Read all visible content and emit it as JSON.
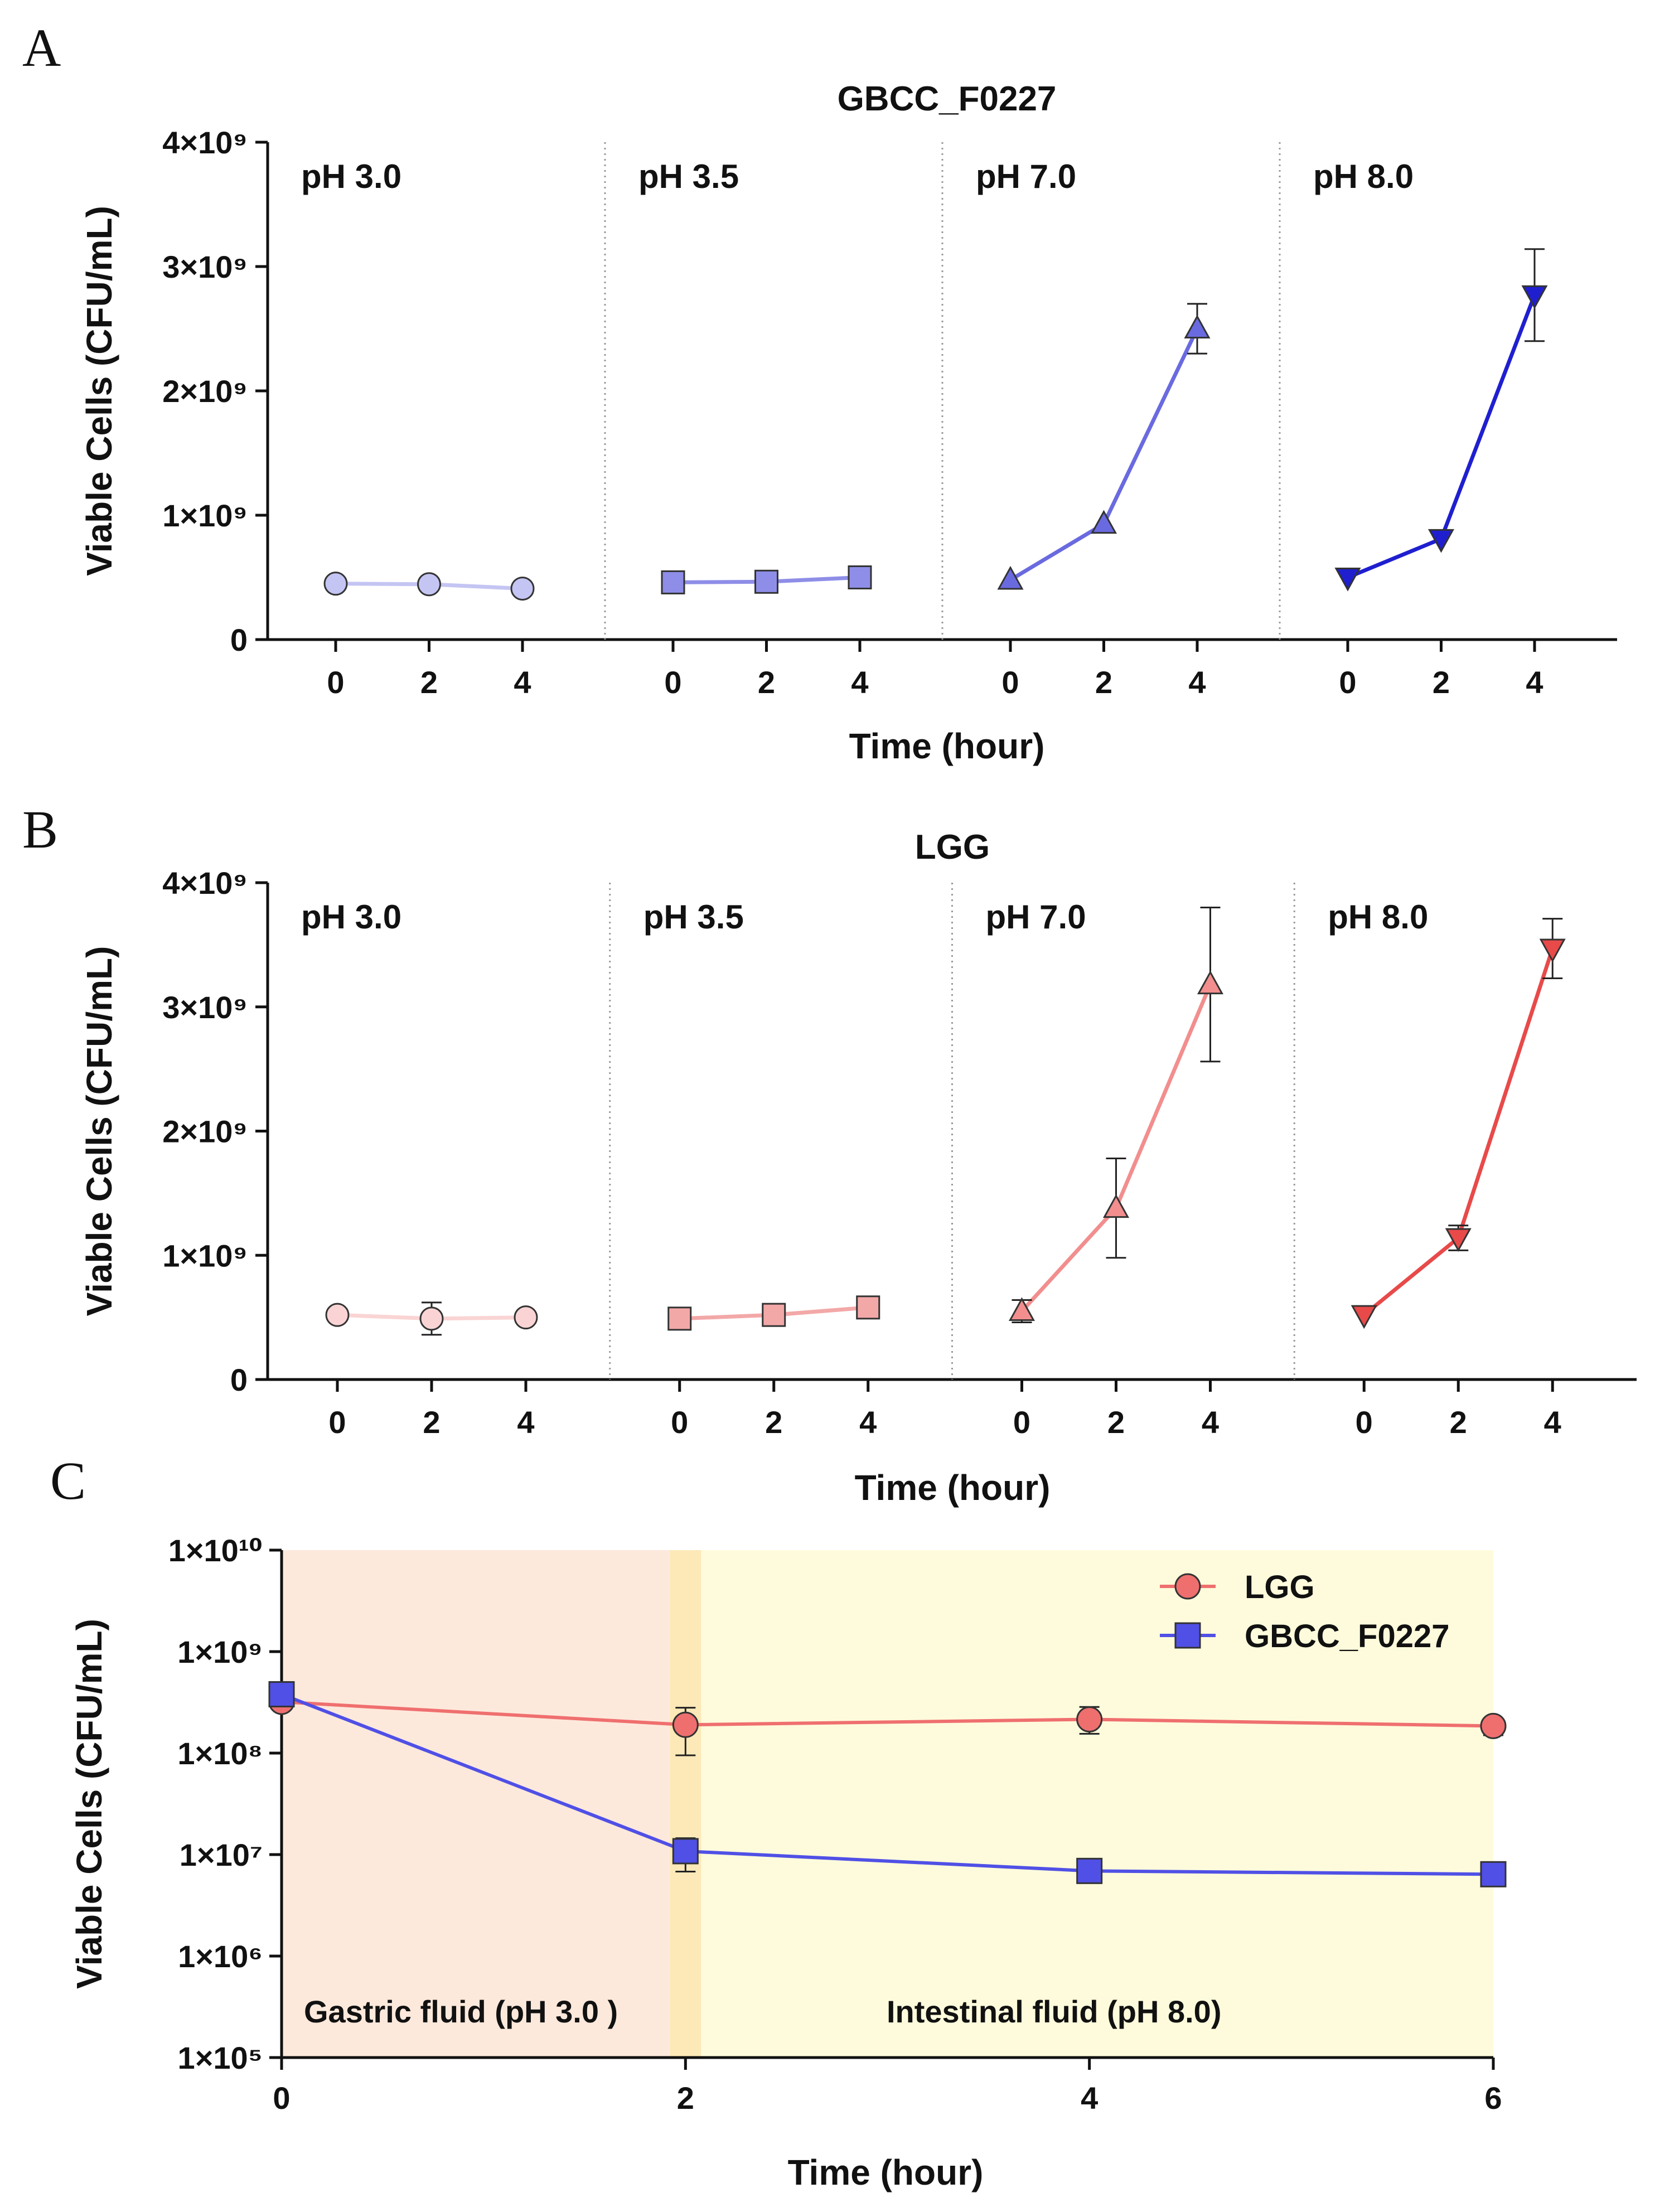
{
  "panels": {
    "A": {
      "letter": "A",
      "chart_data": {
        "type": "line",
        "title": "GBCC_F0227",
        "xlabel": "Time (hour)",
        "ylabel": "Viable Cells (CFU/mL)",
        "ylim": [
          0,
          4000000000
        ],
        "yticks": [
          {
            "value": 0,
            "label": "0"
          },
          {
            "value": 1000000000,
            "label": "1×10⁹"
          },
          {
            "value": 2000000000,
            "label": "2×10⁹"
          },
          {
            "value": 3000000000,
            "label": "3×10⁹"
          },
          {
            "value": 4000000000,
            "label": "4×10⁹"
          }
        ],
        "x": [
          0,
          2,
          4
        ],
        "xtick_labels": [
          "0",
          "2",
          "4"
        ],
        "facets": [
          {
            "name": "pH 3.0",
            "marker": "circle",
            "color": "#c5c5f3",
            "values": [
              450000000,
              445000000,
              410000000
            ],
            "errors": [
              10000000,
              10000000,
              10000000
            ]
          },
          {
            "name": "pH 3.5",
            "marker": "square",
            "color": "#8e8ee8",
            "values": [
              460000000,
              465000000,
              500000000
            ],
            "errors": [
              10000000,
              10000000,
              20000000
            ]
          },
          {
            "name": "pH 7.0",
            "marker": "triangle-up",
            "color": "#6a6ae0",
            "values": [
              480000000,
              930000000,
              2500000000
            ],
            "errors": [
              30000000,
              50000000,
              200000000
            ]
          },
          {
            "name": "pH 8.0",
            "marker": "triangle-down",
            "color": "#1f1fd0",
            "values": [
              500000000,
              810000000,
              2770000000
            ],
            "errors": [
              30000000,
              60000000,
              370000000
            ]
          }
        ]
      }
    },
    "B": {
      "letter": "B",
      "chart_data": {
        "type": "line",
        "title": "LGG",
        "xlabel": "Time (hour)",
        "ylabel": "Viable Cells (CFU/mL)",
        "ylim": [
          0,
          4000000000
        ],
        "yticks": [
          {
            "value": 0,
            "label": "0"
          },
          {
            "value": 1000000000,
            "label": "1×10⁹"
          },
          {
            "value": 2000000000,
            "label": "2×10⁹"
          },
          {
            "value": 3000000000,
            "label": "3×10⁹"
          },
          {
            "value": 4000000000,
            "label": "4×10⁹"
          }
        ],
        "x": [
          0,
          2,
          4
        ],
        "xtick_labels": [
          "0",
          "2",
          "4"
        ],
        "facets": [
          {
            "name": "pH 3.0",
            "marker": "circle",
            "color": "#fad4d4",
            "values": [
              520000000,
              490000000,
              500000000
            ],
            "errors": [
              20000000,
              130000000,
              20000000
            ]
          },
          {
            "name": "pH 3.5",
            "marker": "square",
            "color": "#f3a8a8",
            "values": [
              490000000,
              520000000,
              580000000
            ],
            "errors": [
              20000000,
              20000000,
              30000000
            ]
          },
          {
            "name": "pH 7.0",
            "marker": "triangle-up",
            "color": "#f28e8e",
            "values": [
              550000000,
              1380000000,
              3180000000
            ],
            "errors": [
              90000000,
              400000000,
              620000000
            ]
          },
          {
            "name": "pH 8.0",
            "marker": "triangle-down",
            "color": "#e84a4a",
            "values": [
              520000000,
              1140000000,
              3470000000
            ],
            "errors": [
              50000000,
              100000000,
              240000000
            ]
          }
        ]
      }
    },
    "C": {
      "letter": "C",
      "chart_data": {
        "type": "line",
        "title": "",
        "xlabel": "Time (hour)",
        "ylabel": "Viable Cells (CFU/mL)",
        "yscale": "log",
        "ylim_exp": [
          5,
          10
        ],
        "yticks": [
          {
            "exp": 5,
            "label": "1×10⁵"
          },
          {
            "exp": 6,
            "label": "1×10⁶"
          },
          {
            "exp": 7,
            "label": "1×10⁷"
          },
          {
            "exp": 8,
            "label": "1×10⁸"
          },
          {
            "exp": 9,
            "label": "1×10⁹"
          },
          {
            "exp": 10,
            "label": "1×10¹⁰"
          }
        ],
        "xlim": [
          0,
          6
        ],
        "xticks": [
          0,
          2,
          4,
          6
        ],
        "xtick_labels": [
          "0",
          "2",
          "4",
          "6"
        ],
        "regions": [
          {
            "label": "Gastric fluid (pH 3.0 )",
            "from": 0,
            "to": 2,
            "color": "#fde9dc"
          },
          {
            "label": "Intestinal fluid (pH 8.0)",
            "from": 2,
            "to": 6,
            "color": "#fefbdc"
          }
        ],
        "transition_color": "#fde9b8",
        "series": [
          {
            "name": "LGG",
            "marker": "circle",
            "color": "#ef6f6f",
            "x": [
              0,
              2,
              4,
              6
            ],
            "values": [
              320000000,
              190000000,
              215000000,
              185000000
            ],
            "err_low": [
              290000000,
              95000000,
              155000000,
              150000000
            ],
            "err_high": [
              350000000,
              280000000,
              285000000,
              215000000
            ]
          },
          {
            "name": "GBCC_F0227",
            "marker": "square",
            "color": "#5050e6",
            "x": [
              0,
              2,
              4,
              6
            ],
            "values": [
              380000000,
              10800000,
              6900000,
              6400000
            ],
            "err_low": [
              360000000,
              6800000,
              6600000,
              6100000
            ],
            "err_high": [
              400000000,
              14500000,
              7200000,
              6700000
            ]
          }
        ],
        "legend_position": "top-right"
      }
    }
  }
}
